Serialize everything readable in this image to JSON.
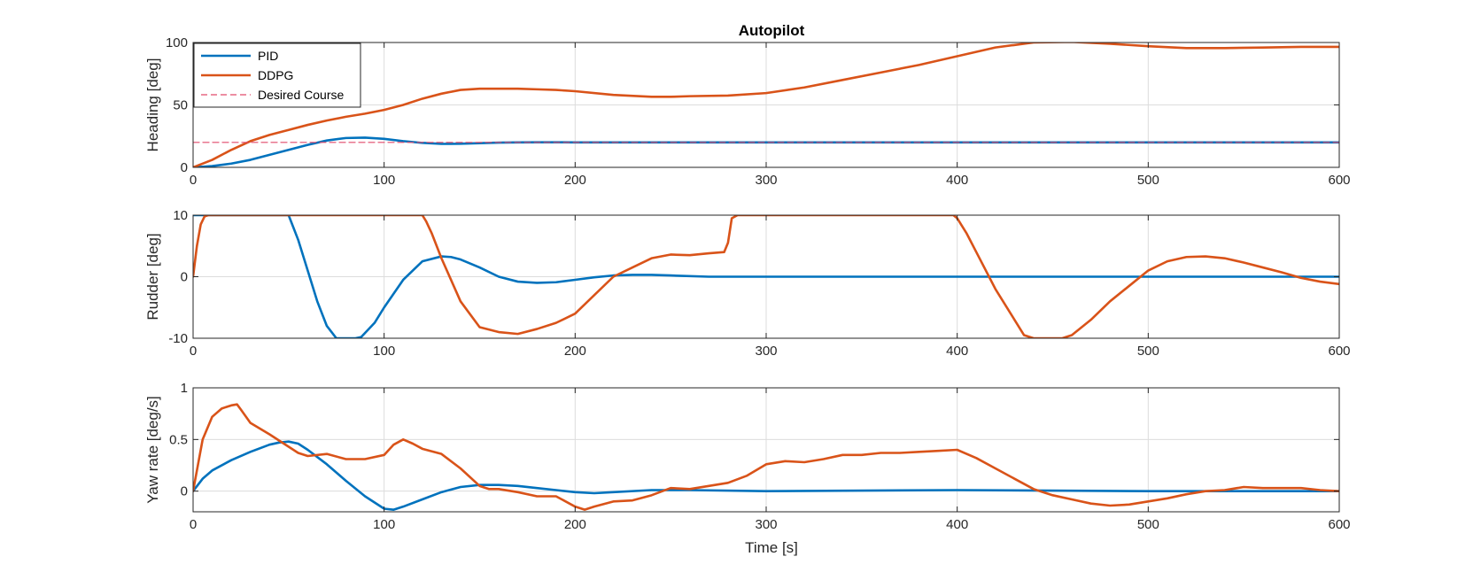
{
  "figure": {
    "title": "Autopilot",
    "xlabel": "Time [s]"
  },
  "colors": {
    "pid": "#0072BD",
    "ddpg": "#D95319",
    "desired": "#E04A6B",
    "grid": "#dcdcdc",
    "axes": "#262626"
  },
  "chart_data": [
    {
      "type": "line",
      "title": "Autopilot",
      "xlabel": "",
      "ylabel": "Heading [deg]",
      "xlim": [
        0,
        600
      ],
      "ylim": [
        0,
        100
      ],
      "xticks": [
        0,
        100,
        200,
        300,
        400,
        500,
        600
      ],
      "yticks": [
        0,
        50,
        100
      ],
      "grid": true,
      "legend": {
        "location": "top-left",
        "entries": [
          "PID",
          "DDPG",
          "Desired Course"
        ]
      },
      "series": [
        {
          "name": "PID",
          "color": "#0072BD",
          "style": "solid",
          "x": [
            0,
            10,
            20,
            30,
            40,
            50,
            60,
            70,
            80,
            90,
            100,
            110,
            120,
            130,
            140,
            150,
            160,
            170,
            180,
            190,
            200,
            250,
            300,
            400,
            500,
            600
          ],
          "y": [
            0,
            1,
            3,
            6,
            10,
            14,
            18,
            21.5,
            23.5,
            23.8,
            22.8,
            21,
            19.6,
            18.8,
            18.9,
            19.4,
            19.8,
            20,
            20.1,
            20.1,
            20,
            20,
            20,
            20,
            20,
            20
          ]
        },
        {
          "name": "DDPG",
          "color": "#D95319",
          "style": "solid",
          "x": [
            0,
            10,
            20,
            30,
            40,
            50,
            60,
            70,
            80,
            90,
            100,
            110,
            120,
            130,
            140,
            150,
            160,
            170,
            180,
            190,
            200,
            220,
            240,
            250,
            260,
            280,
            300,
            320,
            340,
            360,
            380,
            400,
            420,
            440,
            460,
            480,
            500,
            520,
            540,
            560,
            580,
            600
          ],
          "y": [
            0,
            6,
            14,
            21,
            26,
            30,
            34,
            37.5,
            40.5,
            43,
            46,
            50,
            55,
            59,
            62,
            63,
            63,
            63,
            62.5,
            62,
            61,
            58,
            56.5,
            56.5,
            57,
            57.5,
            59.5,
            64,
            70,
            76,
            82,
            89,
            96,
            100,
            100.5,
            99,
            97,
            95.5,
            95.5,
            96,
            96.5,
            96.5
          ]
        },
        {
          "name": "Desired Course",
          "color": "#E04A6B",
          "style": "dashed",
          "x": [
            0,
            600
          ],
          "y": [
            20,
            20
          ]
        }
      ]
    },
    {
      "type": "line",
      "xlabel": "",
      "ylabel": "Rudder [deg]",
      "xlim": [
        0,
        600
      ],
      "ylim": [
        -10,
        10
      ],
      "xticks": [
        0,
        100,
        200,
        300,
        400,
        500,
        600
      ],
      "yticks": [
        -10,
        0,
        10
      ],
      "grid": true,
      "series": [
        {
          "name": "PID",
          "color": "#0072BD",
          "style": "solid",
          "x": [
            0,
            50,
            55,
            60,
            65,
            70,
            75,
            80,
            85,
            88,
            95,
            100,
            110,
            120,
            130,
            135,
            140,
            150,
            160,
            170,
            180,
            190,
            200,
            210,
            220,
            230,
            240,
            250,
            270,
            300,
            400,
            500,
            600
          ],
          "y": [
            10,
            10,
            6,
            1,
            -4,
            -8,
            -10,
            -10,
            -10,
            -9.8,
            -7.5,
            -5,
            -0.5,
            2.5,
            3.3,
            3.2,
            2.8,
            1.5,
            0,
            -0.8,
            -1,
            -0.9,
            -0.5,
            -0.1,
            0.2,
            0.3,
            0.3,
            0.2,
            0,
            0,
            0,
            0,
            0
          ]
        },
        {
          "name": "DDPG",
          "color": "#D95319",
          "style": "solid",
          "x": [
            0,
            2,
            4,
            6,
            8,
            10,
            50,
            100,
            120,
            122,
            125,
            130,
            140,
            150,
            160,
            170,
            180,
            190,
            200,
            210,
            220,
            230,
            240,
            250,
            260,
            270,
            278,
            280,
            282,
            285,
            300,
            398,
            400,
            405,
            410,
            420,
            430,
            435,
            440,
            455,
            460,
            470,
            480,
            490,
            500,
            510,
            520,
            530,
            540,
            550,
            560,
            570,
            580,
            590,
            600
          ],
          "y": [
            0,
            5,
            8.5,
            9.8,
            10,
            10,
            10,
            10,
            10,
            9,
            7,
            3,
            -4,
            -8.2,
            -9,
            -9.3,
            -8.5,
            -7.5,
            -6,
            -3,
            0,
            1.5,
            3,
            3.6,
            3.5,
            3.8,
            4,
            5.5,
            9.5,
            10,
            10,
            10,
            9.5,
            7,
            4,
            -2,
            -7,
            -9.5,
            -10,
            -10,
            -9.5,
            -7,
            -4,
            -1.5,
            1,
            2.5,
            3.2,
            3.3,
            3,
            2.3,
            1.5,
            0.7,
            -0.2,
            -0.8,
            -1.2
          ]
        }
      ]
    },
    {
      "type": "line",
      "xlabel": "Time [s]",
      "ylabel": "Yaw rate [deg/s]",
      "xlim": [
        0,
        600
      ],
      "ylim": [
        -0.2,
        1
      ],
      "xticks": [
        0,
        100,
        200,
        300,
        400,
        500,
        600
      ],
      "yticks": [
        0,
        0.5,
        1
      ],
      "grid": true,
      "series": [
        {
          "name": "PID",
          "color": "#0072BD",
          "style": "solid",
          "x": [
            0,
            5,
            10,
            20,
            30,
            40,
            45,
            50,
            55,
            60,
            70,
            80,
            90,
            100,
            105,
            110,
            120,
            130,
            140,
            150,
            160,
            170,
            180,
            190,
            200,
            210,
            220,
            240,
            260,
            300,
            400,
            500,
            600
          ],
          "y": [
            0,
            0.12,
            0.2,
            0.3,
            0.38,
            0.45,
            0.47,
            0.48,
            0.46,
            0.4,
            0.26,
            0.1,
            -0.05,
            -0.17,
            -0.18,
            -0.15,
            -0.08,
            -0.01,
            0.04,
            0.06,
            0.06,
            0.05,
            0.03,
            0.01,
            -0.01,
            -0.02,
            -0.01,
            0.01,
            0.01,
            0,
            0.01,
            0,
            0
          ]
        },
        {
          "name": "DDPG",
          "color": "#D95319",
          "style": "solid",
          "x": [
            0,
            5,
            10,
            15,
            20,
            23,
            25,
            30,
            40,
            50,
            55,
            60,
            70,
            80,
            90,
            100,
            105,
            110,
            115,
            120,
            130,
            140,
            150,
            155,
            160,
            170,
            180,
            190,
            200,
            205,
            210,
            220,
            230,
            240,
            250,
            260,
            270,
            280,
            290,
            300,
            310,
            320,
            330,
            340,
            350,
            360,
            370,
            380,
            390,
            400,
            410,
            420,
            430,
            440,
            450,
            460,
            470,
            480,
            490,
            500,
            510,
            520,
            530,
            540,
            550,
            560,
            570,
            580,
            590,
            600
          ],
          "y": [
            0,
            0.5,
            0.72,
            0.8,
            0.83,
            0.84,
            0.79,
            0.66,
            0.55,
            0.43,
            0.37,
            0.34,
            0.36,
            0.31,
            0.31,
            0.35,
            0.45,
            0.5,
            0.46,
            0.41,
            0.36,
            0.22,
            0.05,
            0.02,
            0.02,
            -0.01,
            -0.05,
            -0.05,
            -0.15,
            -0.18,
            -0.15,
            -0.1,
            -0.09,
            -0.04,
            0.03,
            0.02,
            0.05,
            0.08,
            0.15,
            0.26,
            0.29,
            0.28,
            0.31,
            0.35,
            0.35,
            0.37,
            0.37,
            0.38,
            0.39,
            0.4,
            0.32,
            0.22,
            0.12,
            0.02,
            -0.04,
            -0.08,
            -0.12,
            -0.14,
            -0.13,
            -0.1,
            -0.07,
            -0.03,
            0,
            0.01,
            0.04,
            0.03,
            0.03,
            0.03,
            0.01,
            0
          ]
        }
      ]
    }
  ]
}
